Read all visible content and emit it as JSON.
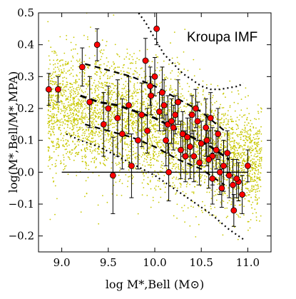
{
  "chart_data": {
    "type": "scatter",
    "xlabel": "log M*,Bell (M⊙)",
    "ylabel": "log(M*,Bell/M*,MPA)",
    "xlim": [
      8.75,
      11.25
    ],
    "ylim": [
      -0.25,
      0.5
    ],
    "xticks": [
      9.0,
      9.5,
      10.0,
      10.5,
      11.0
    ],
    "xtick_labels": [
      "9.0",
      "9.5",
      "10.0",
      "10.5",
      "11.0"
    ],
    "yticks": [
      -0.2,
      -0.1,
      0.0,
      0.1,
      0.2,
      0.3,
      0.4,
      0.5
    ],
    "ytick_labels": [
      "−0.2",
      "−0.1",
      "0.0",
      "0.1",
      "0.2",
      "0.3",
      "0.4",
      "0.5"
    ],
    "annotation": "Kroupa IMF",
    "grid": false,
    "colors": {
      "background_points": "#c8c800",
      "data_points_fill": "#ff0000",
      "data_points_edge": "#000000",
      "error_bars": "#000000",
      "lines": "#000000"
    },
    "background_cloud": {
      "description_free": true,
      "band": [
        [
          9.0,
          0.2,
          0.1
        ],
        [
          9.5,
          0.17,
          0.1
        ],
        [
          10.0,
          0.14,
          0.09
        ],
        [
          10.5,
          0.09,
          0.09
        ],
        [
          11.0,
          0.03,
          0.08
        ]
      ]
    },
    "reference_line": {
      "x": [
        9.0,
        11.0
      ],
      "y": [
        0.0,
        0.0
      ]
    },
    "median_dashed": {
      "x": [
        9.2,
        9.4,
        9.6,
        9.8,
        10.0,
        10.2,
        10.4,
        10.6,
        10.8
      ],
      "y": [
        0.24,
        0.22,
        0.21,
        0.19,
        0.17,
        0.14,
        0.11,
        0.08,
        0.04
      ]
    },
    "upper_dashed": {
      "x": [
        9.25,
        9.5,
        9.75,
        10.0,
        10.25,
        10.5,
        10.75
      ],
      "y": [
        0.34,
        0.32,
        0.3,
        0.27,
        0.23,
        0.19,
        0.13
      ]
    },
    "lower_dashed": {
      "x": [
        9.25,
        9.5,
        9.75,
        10.0,
        10.25,
        10.5,
        10.75
      ],
      "y": [
        0.15,
        0.13,
        0.11,
        0.08,
        0.04,
        0.01,
        -0.04
      ]
    },
    "upper_dotted": {
      "x": [
        9.8,
        9.9,
        10.0,
        10.1,
        10.2,
        10.3,
        10.4,
        10.5,
        10.6,
        10.7,
        10.8,
        10.9,
        10.95
      ],
      "y": [
        0.51,
        0.47,
        0.42,
        0.37,
        0.34,
        0.31,
        0.29,
        0.27,
        0.26,
        0.26,
        0.265,
        0.27,
        0.28
      ]
    },
    "lower_dotted": {
      "x": [
        9.05,
        9.2,
        9.4,
        9.6,
        9.8,
        10.0,
        10.2,
        10.4,
        10.6,
        10.8,
        10.95
      ],
      "y": [
        0.12,
        0.1,
        0.08,
        0.05,
        0.02,
        -0.01,
        -0.05,
        -0.09,
        -0.13,
        -0.18,
        -0.21
      ]
    },
    "series": [
      {
        "x": [
          8.86,
          8.96,
          9.22,
          9.38,
          9.5,
          9.6,
          9.72,
          9.86,
          9.96,
          10.02,
          10.08,
          10.14,
          10.22,
          10.3,
          10.38,
          10.46,
          10.56,
          10.62,
          10.7,
          10.84,
          10.94,
          11.0,
          9.3,
          9.45,
          9.65,
          9.82,
          9.92,
          10.05,
          10.12,
          10.2,
          10.28,
          10.35,
          10.42,
          10.5,
          10.58,
          10.66,
          10.74,
          10.8,
          10.9,
          9.9,
          10.0,
          10.1,
          10.25,
          10.4,
          10.55,
          10.68,
          10.78,
          10.88,
          9.55,
          9.75,
          10.15,
          10.33,
          10.48,
          10.62,
          10.72,
          10.85,
          9.95,
          10.18,
          10.44,
          10.6
        ],
        "y": [
          0.26,
          0.26,
          0.33,
          0.4,
          0.2,
          0.17,
          0.21,
          0.18,
          0.24,
          0.45,
          0.25,
          0.15,
          0.18,
          0.12,
          0.08,
          0.16,
          0.1,
          0.05,
          0.0,
          -0.04,
          -0.07,
          0.02,
          0.22,
          0.15,
          0.12,
          0.1,
          0.13,
          0.19,
          0.1,
          0.14,
          0.07,
          0.11,
          0.05,
          0.09,
          0.04,
          0.07,
          0.02,
          -0.01,
          -0.03,
          0.35,
          0.3,
          0.21,
          0.22,
          0.18,
          0.14,
          0.12,
          0.06,
          -0.02,
          -0.01,
          0.02,
          0.0,
          0.05,
          0.03,
          -0.02,
          -0.05,
          -0.12,
          0.27,
          0.16,
          0.2,
          0.17
        ],
        "err": [
          0.05,
          0.04,
          0.06,
          0.05,
          0.07,
          0.12,
          0.09,
          0.1,
          0.06,
          0.05,
          0.08,
          0.09,
          0.06,
          0.07,
          0.1,
          0.06,
          0.08,
          0.09,
          0.07,
          0.08,
          0.06,
          0.05,
          0.08,
          0.1,
          0.11,
          0.09,
          0.07,
          0.06,
          0.08,
          0.07,
          0.09,
          0.06,
          0.08,
          0.07,
          0.09,
          0.06,
          0.08,
          0.07,
          0.06,
          0.07,
          0.06,
          0.08,
          0.07,
          0.06,
          0.09,
          0.08,
          0.07,
          0.06,
          0.12,
          0.1,
          0.09,
          0.08,
          0.07,
          0.08,
          0.06,
          0.05,
          0.06,
          0.07,
          0.06,
          0.08
        ]
      }
    ]
  }
}
